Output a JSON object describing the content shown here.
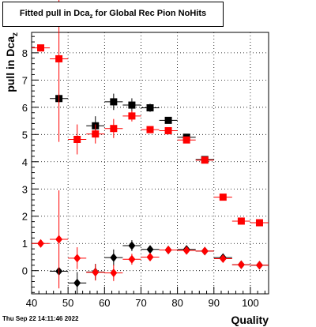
{
  "chart_data": {
    "type": "scatter",
    "title_main": "Fitted pull in Dca",
    "title_sub": "z",
    "title_rest": " for Global Rec Pion NoHits",
    "xlabel": "Quality",
    "ylabel_main": "pull in Dca",
    "ylabel_sub": "z",
    "xlim": [
      40,
      105
    ],
    "ylim": [
      -0.85,
      8.75
    ],
    "x_ticks": [
      40,
      50,
      60,
      70,
      80,
      90,
      100
    ],
    "y_ticks": [
      0,
      1,
      2,
      3,
      4,
      5,
      6,
      7,
      8
    ],
    "grid": true,
    "series": [
      {
        "marker": "square",
        "color": "#000000",
        "points": [
          {
            "x": 47.5,
            "y": 6.32,
            "yerr": 0.15
          },
          {
            "x": 57.5,
            "y": 5.32,
            "yerr": 0.35
          },
          {
            "x": 62.5,
            "y": 6.2,
            "yerr": 0.3
          },
          {
            "x": 67.5,
            "y": 6.08,
            "yerr": 0.25
          },
          {
            "x": 72.5,
            "y": 5.98,
            "yerr": 0.15
          },
          {
            "x": 77.5,
            "y": 5.52,
            "yerr": 0.1
          },
          {
            "x": 82.5,
            "y": 4.9,
            "yerr": 0.08
          },
          {
            "x": 87.5,
            "y": 4.08,
            "yerr": 0.06
          }
        ]
      },
      {
        "marker": "square",
        "color": "#ff0000",
        "points": [
          {
            "x": 42.5,
            "y": 8.18,
            "yerr": 0.1
          },
          {
            "x": 47.5,
            "y": 7.78,
            "yerr": 3.05
          },
          {
            "x": 52.5,
            "y": 4.82,
            "yerr": 0.55
          },
          {
            "x": 57.5,
            "y": 5.02,
            "yerr": 0.35
          },
          {
            "x": 62.5,
            "y": 5.22,
            "yerr": 0.35
          },
          {
            "x": 67.5,
            "y": 5.68,
            "yerr": 0.2
          },
          {
            "x": 72.5,
            "y": 5.18,
            "yerr": 0.12
          },
          {
            "x": 77.5,
            "y": 5.14,
            "yerr": 0.1
          },
          {
            "x": 82.5,
            "y": 4.8,
            "yerr": 0.08
          },
          {
            "x": 87.5,
            "y": 4.06,
            "yerr": 0.06
          },
          {
            "x": 92.5,
            "y": 2.7,
            "yerr": 0.05
          },
          {
            "x": 97.5,
            "y": 1.82,
            "yerr": 0.04
          },
          {
            "x": 102.5,
            "y": 1.76,
            "yerr": 0.04
          }
        ]
      },
      {
        "marker": "diamond",
        "color": "#000000",
        "points": [
          {
            "x": 47.5,
            "y": -0.02,
            "yerr": 0.12
          },
          {
            "x": 52.5,
            "y": -0.45,
            "yerr": 0.4
          },
          {
            "x": 57.5,
            "y": -0.05,
            "yerr": 0.3
          },
          {
            "x": 62.5,
            "y": 0.48,
            "yerr": 0.3
          },
          {
            "x": 67.5,
            "y": 0.92,
            "yerr": 0.2
          },
          {
            "x": 72.5,
            "y": 0.78,
            "yerr": 0.12
          },
          {
            "x": 77.5,
            "y": 0.76,
            "yerr": 0.08
          },
          {
            "x": 82.5,
            "y": 0.78,
            "yerr": 0.06
          },
          {
            "x": 87.5,
            "y": 0.72,
            "yerr": 0.05
          },
          {
            "x": 92.5,
            "y": 0.48,
            "yerr": 0.04
          },
          {
            "x": 97.5,
            "y": 0.22,
            "yerr": 0.04
          },
          {
            "x": 102.5,
            "y": 0.2,
            "yerr": 0.04
          }
        ]
      },
      {
        "marker": "diamond",
        "color": "#ff0000",
        "points": [
          {
            "x": 42.5,
            "y": 1.0,
            "yerr": 0.1
          },
          {
            "x": 47.5,
            "y": 1.15,
            "yerr": 1.8
          },
          {
            "x": 52.5,
            "y": 0.46,
            "yerr": 0.4
          },
          {
            "x": 57.5,
            "y": -0.06,
            "yerr": 0.3
          },
          {
            "x": 62.5,
            "y": -0.08,
            "yerr": 0.3
          },
          {
            "x": 67.5,
            "y": 0.42,
            "yerr": 0.2
          },
          {
            "x": 72.5,
            "y": 0.5,
            "yerr": 0.12
          },
          {
            "x": 77.5,
            "y": 0.76,
            "yerr": 0.08
          },
          {
            "x": 82.5,
            "y": 0.74,
            "yerr": 0.06
          },
          {
            "x": 87.5,
            "y": 0.72,
            "yerr": 0.05
          },
          {
            "x": 92.5,
            "y": 0.44,
            "yerr": 0.04
          },
          {
            "x": 97.5,
            "y": 0.22,
            "yerr": 0.04
          },
          {
            "x": 102.5,
            "y": 0.2,
            "yerr": 0.04
          }
        ]
      }
    ]
  },
  "footer": {
    "timestamp": "Thu Sep 22 14:11:46 2022"
  }
}
